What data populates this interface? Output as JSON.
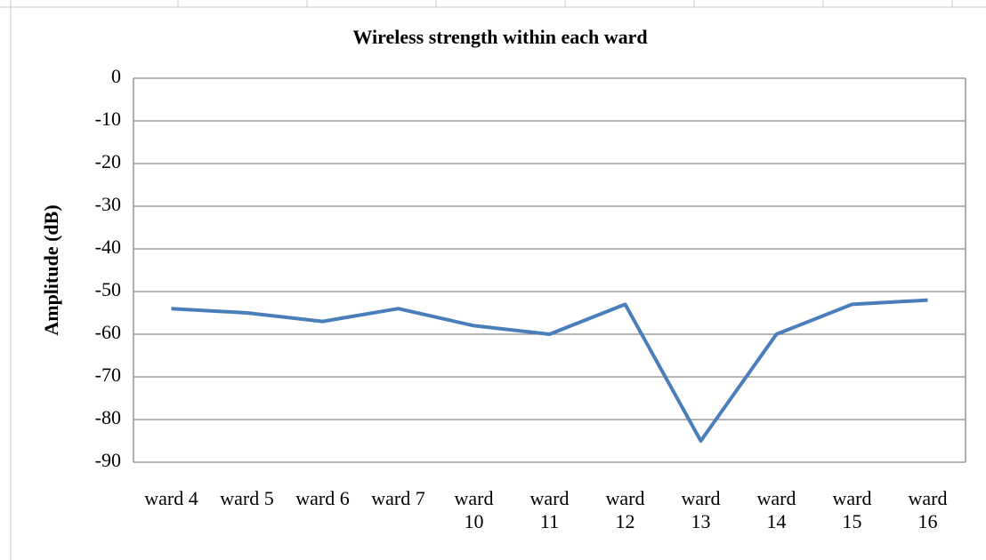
{
  "chart_data": {
    "type": "line",
    "title": "Wireless strength within each ward",
    "y_label": "Amplitude (dB)",
    "categories": [
      "ward 4",
      "ward 5",
      "ward 6",
      "ward 7",
      "ward 10",
      "ward 11",
      "ward 12",
      "ward 13",
      "ward 14",
      "ward 15",
      "ward 16"
    ],
    "series": [
      {
        "name": "Amplitude",
        "color": "#4a7ebb",
        "values": [
          -54,
          -55,
          -57,
          -54,
          -58,
          -60,
          -53,
          -85,
          -60,
          -53,
          -52
        ]
      }
    ],
    "ylim": [
      -90,
      0
    ],
    "yticks": [
      0,
      -10,
      -20,
      -30,
      -40,
      -50,
      -60,
      -70,
      -80,
      -90
    ],
    "grid": true
  }
}
